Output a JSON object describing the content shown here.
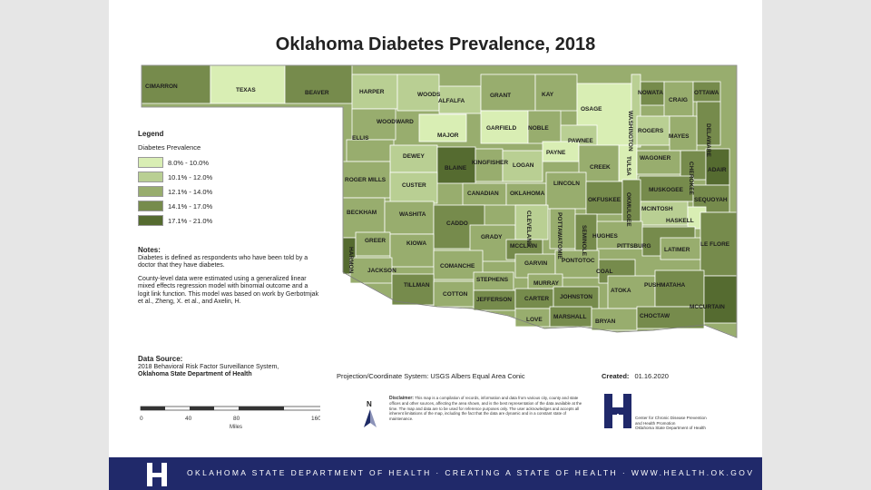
{
  "title": "Oklahoma Diabetes Prevalence, 2018",
  "legend": {
    "title": "Legend",
    "subtitle": "Diabetes Prevalence",
    "classes": [
      {
        "label": "8.0% - 10.0%",
        "color": "#d9eeb4"
      },
      {
        "label": "10.1% - 12.0%",
        "color": "#b9cf93"
      },
      {
        "label": "12.1% - 14.0%",
        "color": "#98ad6e"
      },
      {
        "label": "14.1% - 17.0%",
        "color": "#768b4c"
      },
      {
        "label": "17.1% - 21.0%",
        "color": "#556b30"
      }
    ]
  },
  "notes": {
    "title": "Notes:",
    "p1": "Diabetes is defined as respondents who have been told by a doctor that they have diabetes.",
    "p2": "County-level data were estimated using a generalized linear mixed effects regression model with binomial outcome and a logit link function. This model was based on work by Gerbotmjak et al., Zheng, X. et al., and Axelin, H."
  },
  "source": {
    "title": "Data Source:",
    "line1": "2018 Behavioral Risk Factor Surveillance System,",
    "line2": "Oklahoma State Department of Health"
  },
  "projection": "Projection/Coordinate System: USGS Albers Equal Area Conic",
  "created": {
    "label": "Created:",
    "date": "01.16.2020"
  },
  "disclaimer": {
    "title": "Disclaimer:",
    "text": "This map is a compilation of records, information and data from various city, county and state offices and other sources, affecting the area shown, and is the best representation of the data available at the time. The map and data are to be used for reference purposes only. The user acknowledges and accepts all inherent limitations of the map, including the fact that the data are dynamic and in a constant state of maintenance."
  },
  "scale": {
    "ticks": [
      "0",
      "40",
      "80",
      "160"
    ],
    "unit": "Miles"
  },
  "north_label": "N",
  "cdc_text": {
    "line1": "Center for Chronic Disease Prevention",
    "line2": "and Health Promotion",
    "line3": "Oklahoma State Department of Health"
  },
  "footer_text": "OKLAHOMA STATE DEPARTMENT OF HEALTH · CREATING A STATE OF HEALTH · WWW.HEALTH.OK.GOV",
  "counties": [
    {
      "name": "CIMARRON",
      "class": 3
    },
    {
      "name": "TEXAS",
      "class": 0
    },
    {
      "name": "BEAVER",
      "class": 3
    },
    {
      "name": "HARPER",
      "class": 1
    },
    {
      "name": "WOODS",
      "class": 1
    },
    {
      "name": "ALFALFA",
      "class": 1
    },
    {
      "name": "GRANT",
      "class": 2
    },
    {
      "name": "KAY",
      "class": 2
    },
    {
      "name": "OSAGE",
      "class": 0
    },
    {
      "name": "WASHINGTON",
      "class": 1
    },
    {
      "name": "NOWATA",
      "class": 3
    },
    {
      "name": "CRAIG",
      "class": 2
    },
    {
      "name": "OTTAWA",
      "class": 3
    },
    {
      "name": "DELAWARE",
      "class": 3
    },
    {
      "name": "WOODWARD",
      "class": 2
    },
    {
      "name": "ELLIS",
      "class": 2
    },
    {
      "name": "MAJOR",
      "class": 0
    },
    {
      "name": "GARFIELD",
      "class": 0
    },
    {
      "name": "NOBLE",
      "class": 2
    },
    {
      "name": "PAWNEE",
      "class": 1
    },
    {
      "name": "TULSA",
      "class": 0
    },
    {
      "name": "ROGERS",
      "class": 1
    },
    {
      "name": "MAYES",
      "class": 2
    },
    {
      "name": "CHEROKEE",
      "class": 3
    },
    {
      "name": "ADAIR",
      "class": 4
    },
    {
      "name": "DEWEY",
      "class": 1
    },
    {
      "name": "BLAINE",
      "class": 4
    },
    {
      "name": "KINGFISHER",
      "class": 2
    },
    {
      "name": "LOGAN",
      "class": 1
    },
    {
      "name": "PAYNE",
      "class": 0
    },
    {
      "name": "CREEK",
      "class": 2
    },
    {
      "name": "WAGONER",
      "class": 2
    },
    {
      "name": "MUSKOGEE",
      "class": 3
    },
    {
      "name": "SEQUOYAH",
      "class": 3
    },
    {
      "name": "ROGER MILLS",
      "class": 2
    },
    {
      "name": "CUSTER",
      "class": 1
    },
    {
      "name": "CANADIAN",
      "class": 2
    },
    {
      "name": "OKLAHOMA",
      "class": 2
    },
    {
      "name": "LINCOLN",
      "class": 2
    },
    {
      "name": "OKFUSKEE",
      "class": 3
    },
    {
      "name": "OKMULGEE",
      "class": 3
    },
    {
      "name": "MCINTOSH",
      "class": 1
    },
    {
      "name": "HASKELL",
      "class": 0
    },
    {
      "name": "LE FLORE",
      "class": 3
    },
    {
      "name": "BECKHAM",
      "class": 2
    },
    {
      "name": "WASHITA",
      "class": 2
    },
    {
      "name": "CADDO",
      "class": 3
    },
    {
      "name": "GRADY",
      "class": 2
    },
    {
      "name": "CLEVELAND",
      "class": 1
    },
    {
      "name": "POTTAWATOMIE",
      "class": 2
    },
    {
      "name": "SEMINOLE",
      "class": 3
    },
    {
      "name": "HUGHES",
      "class": 2
    },
    {
      "name": "PITTSBURG",
      "class": 3
    },
    {
      "name": "LATIMER",
      "class": 2
    },
    {
      "name": "HARMON",
      "class": 4
    },
    {
      "name": "GREER",
      "class": 2
    },
    {
      "name": "KIOWA",
      "class": 2
    },
    {
      "name": "JACKSON",
      "class": 2
    },
    {
      "name": "COMANCHE",
      "class": 2
    },
    {
      "name": "MCCLAIN",
      "class": 3
    },
    {
      "name": "GARVIN",
      "class": 2
    },
    {
      "name": "PONTOTOC",
      "class": 2
    },
    {
      "name": "COAL",
      "class": 3
    },
    {
      "name": "ATOKA",
      "class": 2
    },
    {
      "name": "PUSHMATAHA",
      "class": 3
    },
    {
      "name": "MCCURTAIN",
      "class": 4
    },
    {
      "name": "TILLMAN",
      "class": 3
    },
    {
      "name": "COTTON",
      "class": 2
    },
    {
      "name": "STEPHENS",
      "class": 2
    },
    {
      "name": "JEFFERSON",
      "class": 3
    },
    {
      "name": "CARTER",
      "class": 3
    },
    {
      "name": "MURRAY",
      "class": 2
    },
    {
      "name": "JOHNSTON",
      "class": 3
    },
    {
      "name": "LOVE",
      "class": 2
    },
    {
      "name": "MARSHALL",
      "class": 3
    },
    {
      "name": "BRYAN",
      "class": 2
    },
    {
      "name": "CHOCTAW",
      "class": 3
    }
  ]
}
